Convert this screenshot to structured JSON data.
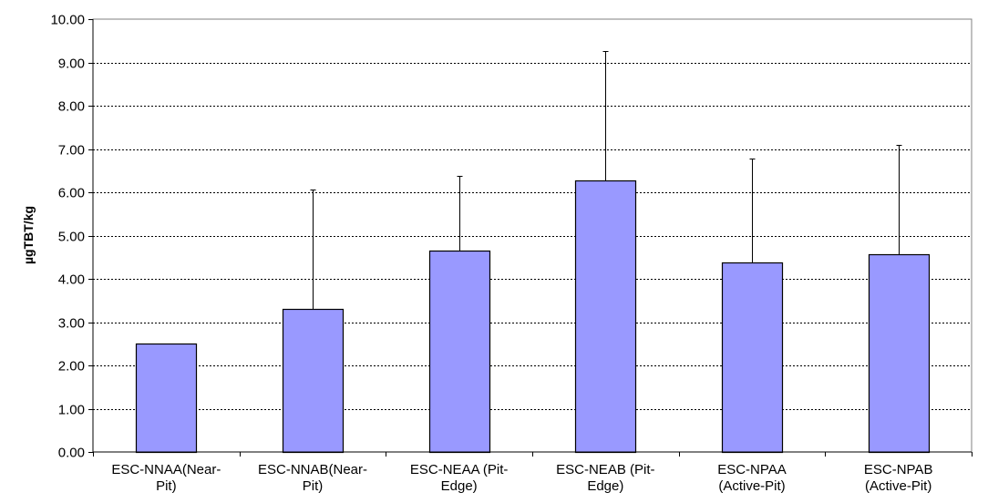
{
  "chart_data": {
    "type": "bar",
    "title": "",
    "xlabel": "",
    "ylabel": "µgTBT/kg",
    "ylim": [
      0,
      10
    ],
    "ytick_step": 1,
    "ytick_labels": [
      "0.00",
      "1.00",
      "2.00",
      "3.00",
      "4.00",
      "5.00",
      "6.00",
      "7.00",
      "8.00",
      "9.00",
      "10.00"
    ],
    "grid": true,
    "grid_style": "dashed-horizontal",
    "legend": "none",
    "bar_color": "#9999ff",
    "bar_edge_color": "#000000",
    "categories": [
      [
        "ESC-NNAA(Near-",
        "Pit)"
      ],
      [
        "ESC-NNAB(Near-",
        "Pit)"
      ],
      [
        "ESC-NEAA (Pit-",
        "Edge)"
      ],
      [
        "ESC-NEAB (Pit-",
        "Edge)"
      ],
      [
        "ESC-NPAA",
        "(Active-Pit)"
      ],
      [
        "ESC-NPAB",
        "(Active-Pit)"
      ]
    ],
    "values": [
      2.5,
      3.3,
      4.65,
      6.28,
      4.37,
      4.57
    ],
    "error_upper": [
      null,
      6.07,
      6.37,
      9.27,
      6.78,
      7.1
    ]
  }
}
